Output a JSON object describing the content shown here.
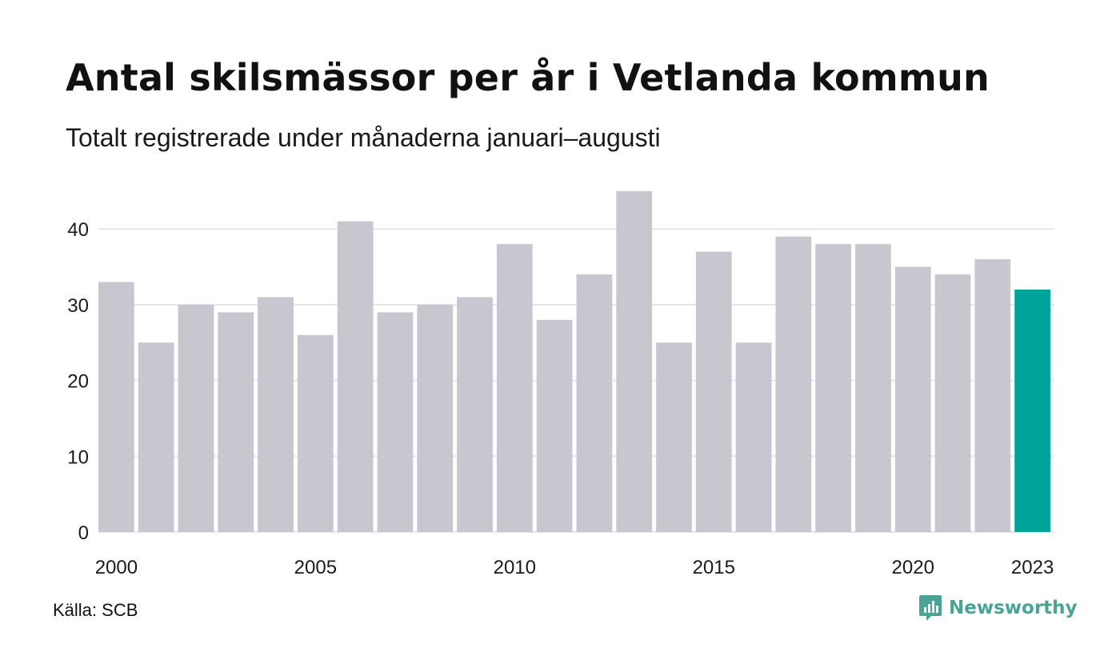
{
  "header": {
    "title": "Antal skilsmässor per år i Vetlanda kommun",
    "subtitle": "Totalt registrerade under månaderna januari–augusti"
  },
  "footer": {
    "source": "Källa: SCB",
    "brand": "Newsworthy",
    "brand_icon": "newsworthy-logo-icon"
  },
  "colors": {
    "bar": "#c8c7d0",
    "highlight": "#00a39a",
    "grid": "#e6e6ea",
    "brand": "#4aa394"
  },
  "chart_data": {
    "type": "bar",
    "title": "Antal skilsmässor per år i Vetlanda kommun",
    "subtitle": "Totalt registrerade under månaderna januari–augusti",
    "categories": [
      2000,
      2001,
      2002,
      2003,
      2004,
      2005,
      2006,
      2007,
      2008,
      2009,
      2010,
      2011,
      2012,
      2013,
      2014,
      2015,
      2016,
      2017,
      2018,
      2019,
      2020,
      2021,
      2022,
      2023
    ],
    "values": [
      33,
      25,
      30,
      29,
      31,
      26,
      41,
      29,
      30,
      31,
      38,
      28,
      34,
      45,
      25,
      37,
      25,
      39,
      38,
      38,
      35,
      34,
      36,
      32
    ],
    "highlight_category": 2023,
    "x_tick_labels": [
      "2000",
      "2005",
      "2010",
      "2015",
      "2020",
      "2023"
    ],
    "y_ticks": [
      0,
      10,
      20,
      30,
      40
    ],
    "ylim": [
      0,
      45
    ],
    "grid": true,
    "legend": "none"
  }
}
